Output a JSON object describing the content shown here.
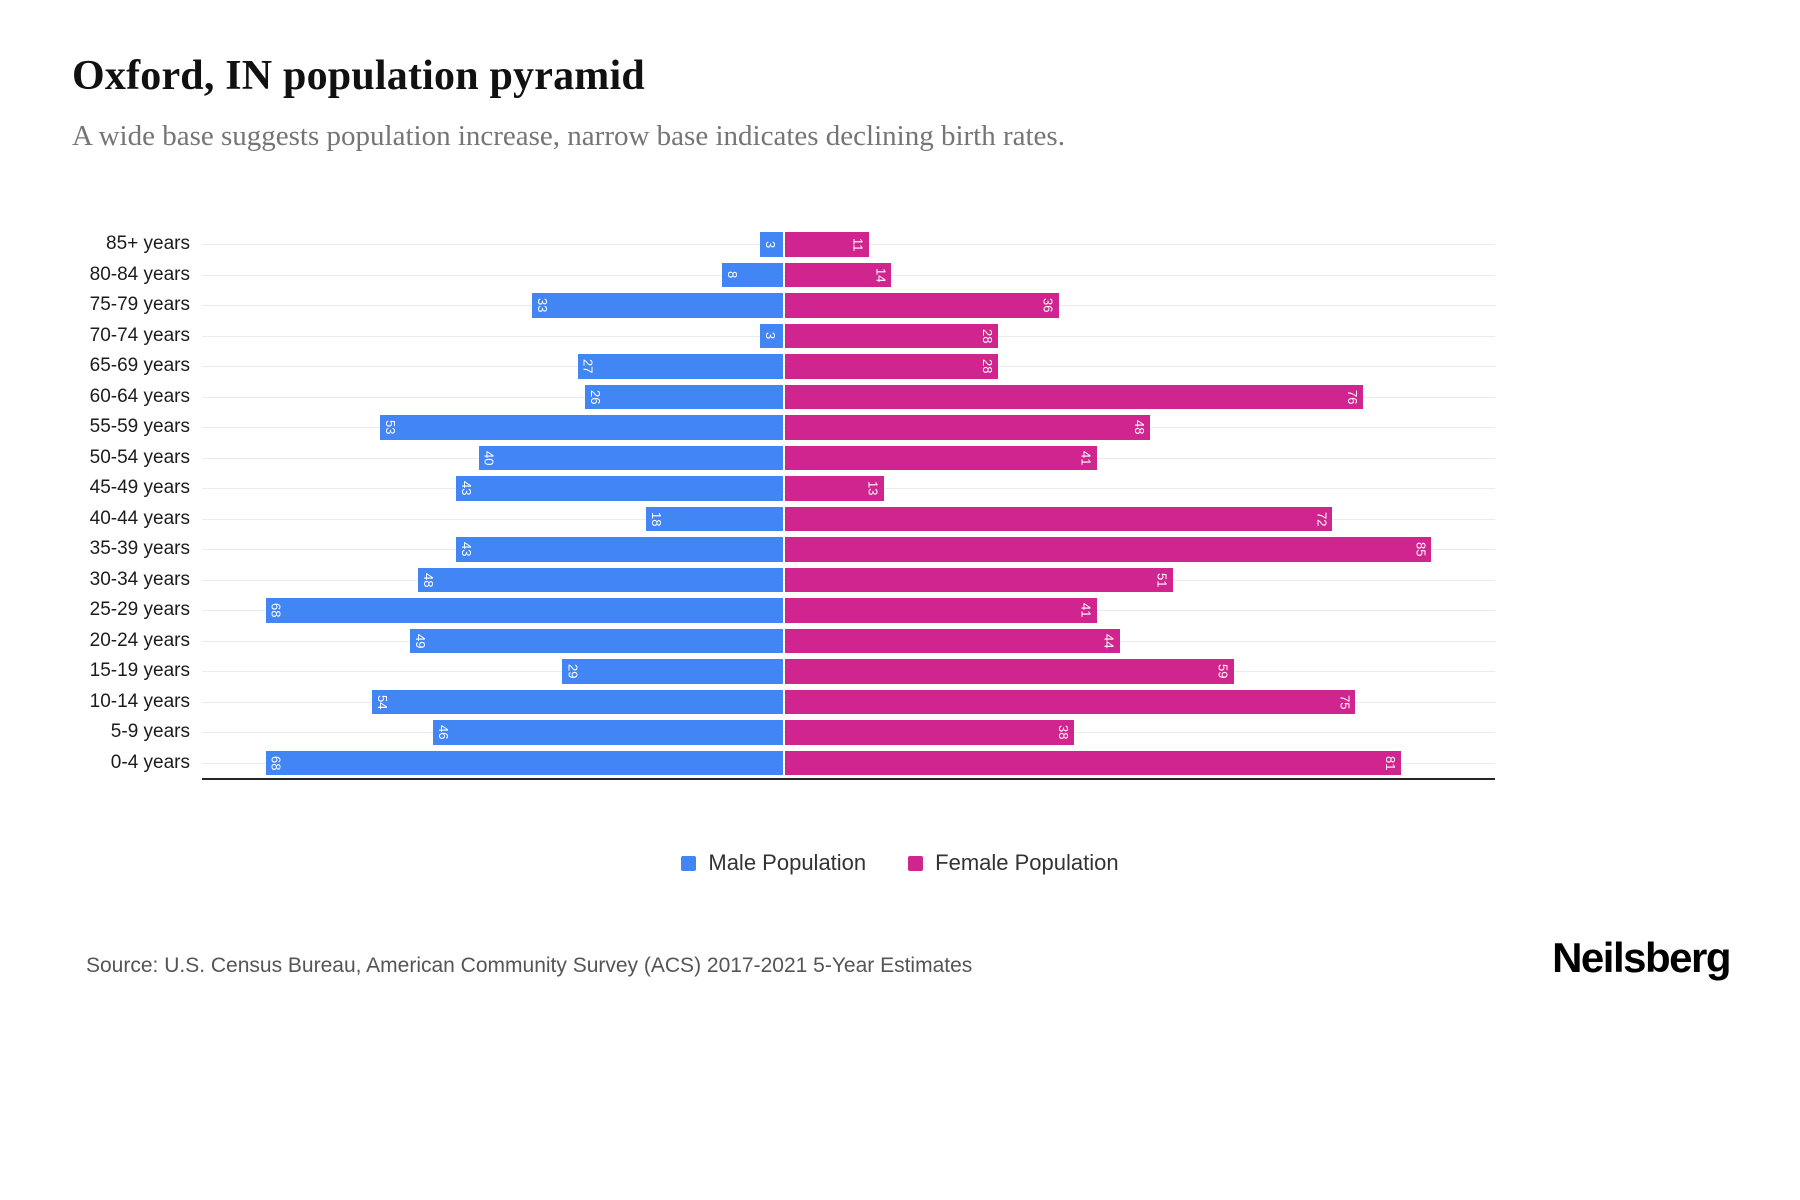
{
  "header": {
    "title": "Oxford, IN population pyramid",
    "subtitle": "A wide base suggests population increase, narrow base indicates declining birth rates."
  },
  "chart_data": {
    "type": "bar",
    "variant": "population-pyramid",
    "orientation": "horizontal",
    "grid": "horizontal",
    "legend_position": "bottom",
    "max_scale": 85,
    "categories": [
      "85+ years",
      "80-84 years",
      "75-79 years",
      "70-74 years",
      "65-69 years",
      "60-64 years",
      "55-59 years",
      "50-54 years",
      "45-49 years",
      "40-44 years",
      "35-39 years",
      "30-34 years",
      "25-29 years",
      "20-24 years",
      "15-19 years",
      "10-14 years",
      "5-9 years",
      "0-4 years"
    ],
    "series": [
      {
        "name": "Male Population",
        "side": "left",
        "color": "#4285F4",
        "values": [
          3,
          8,
          33,
          3,
          27,
          26,
          53,
          40,
          43,
          18,
          43,
          48,
          68,
          49,
          29,
          54,
          46,
          68
        ]
      },
      {
        "name": "Female Population",
        "side": "right",
        "color": "#D0248F",
        "values": [
          11,
          14,
          36,
          28,
          28,
          76,
          48,
          41,
          13,
          72,
          85,
          51,
          41,
          44,
          59,
          75,
          38,
          81
        ]
      }
    ]
  },
  "footer": {
    "source": "Source: U.S. Census Bureau, American Community Survey (ACS) 2017-2021 5-Year Estimates",
    "logo": "Neilsberg"
  }
}
